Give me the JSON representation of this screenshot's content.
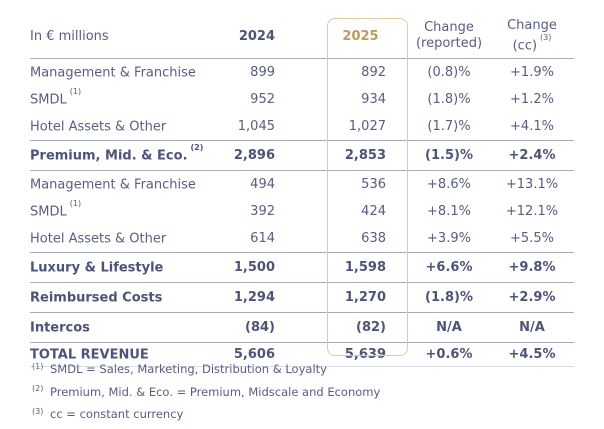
{
  "colors": {
    "text_navy": "#575e80",
    "text_navy_bold": "#4d5477",
    "accent_gold": "#be9a5e",
    "gold_box_border": "#e4c99f",
    "separator": "#a7abba",
    "separator_light": "#dadce3",
    "background": "#ffffff"
  },
  "chart_data": {
    "type": "table",
    "unit_label": "In € millions",
    "columns": {
      "y2024": "2024",
      "y2025": "2025",
      "change_reported": [
        "Change",
        "(reported)"
      ],
      "change_cc": [
        "Change",
        "(cc)"
      ],
      "change_cc_sup": "(3)"
    },
    "rows": [
      {
        "label": "Management & Franchise",
        "y2024": "899",
        "y2025": "892",
        "change_reported": "(0.8)%",
        "change_cc": "+1.9%"
      },
      {
        "label": "SMDL",
        "sup": "(1)",
        "y2024": "952",
        "y2025": "934",
        "change_reported": "(1.8)%",
        "change_cc": "+1.2%"
      },
      {
        "label": "Hotel Assets & Other",
        "y2024": "1,045",
        "y2025": "1,027",
        "change_reported": "(1.7)%",
        "change_cc": "+4.1%"
      },
      {
        "label": "Premium, Mid. & Eco.",
        "sup": "(2)",
        "y2024": "2,896",
        "y2025": "2,853",
        "change_reported": "(1.5)%",
        "change_cc": "+2.4%"
      },
      {
        "label": "Management & Franchise",
        "y2024": "494",
        "y2025": "536",
        "change_reported": "+8.6%",
        "change_cc": "+13.1%"
      },
      {
        "label": "SMDL",
        "sup": "(1)",
        "y2024": "392",
        "y2025": "424",
        "change_reported": "+8.1%",
        "change_cc": "+12.1%"
      },
      {
        "label": "Hotel Assets & Other",
        "y2024": "614",
        "y2025": "638",
        "change_reported": "+3.9%",
        "change_cc": "+5.5%"
      },
      {
        "label": "Luxury & Lifestyle",
        "y2024": "1,500",
        "y2025": "1,598",
        "change_reported": "+6.6%",
        "change_cc": "+9.8%"
      },
      {
        "label": "Reimbursed Costs",
        "y2024": "1,294",
        "y2025": "1,270",
        "change_reported": "(1.8)%",
        "change_cc": "+2.9%"
      },
      {
        "label": "Intercos",
        "y2024": "(84)",
        "y2025": "(82)",
        "change_reported": "N/A",
        "change_cc": "N/A"
      },
      {
        "label": "TOTAL REVENUE",
        "y2024": "5,606",
        "y2025": "5,639",
        "change_reported": "+0.6%",
        "change_cc": "+4.5%"
      }
    ],
    "footnotes": [
      {
        "sup": "(1)",
        "text": "SMDL = Sales, Marketing, Distribution & Loyalty"
      },
      {
        "sup": "(2)",
        "text": "Premium, Mid. & Eco. = Premium, Midscale and Economy"
      },
      {
        "sup": "(3)",
        "text": "cc = constant currency"
      }
    ]
  }
}
